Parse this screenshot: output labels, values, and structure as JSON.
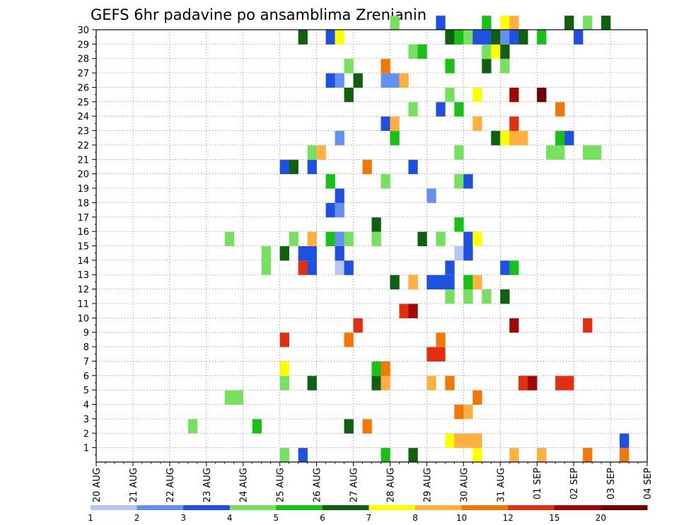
{
  "chart_data": {
    "type": "heatmap",
    "title": "GEFS 6hr padavine po ansamblima Zrenjanin",
    "x_tick_labels": [
      "20 AUG",
      "21 AUG",
      "22 AUG",
      "23 AUG",
      "24 AUG",
      "25 AUG",
      "26 AUG",
      "27 AUG",
      "28 AUG",
      "29 AUG",
      "30 AUG",
      "31 AUG",
      "01 SEP",
      "02 SEP",
      "03 SEP",
      "04 SEP"
    ],
    "y_tick_labels": [
      "1",
      "2",
      "3",
      "4",
      "5",
      "6",
      "7",
      "8",
      "9",
      "10",
      "11",
      "12",
      "13",
      "14",
      "15",
      "16",
      "17",
      "18",
      "19",
      "20",
      "21",
      "22",
      "23",
      "24",
      "25",
      "26",
      "27",
      "28",
      "29",
      "30"
    ],
    "x_unit": "6-hour steps from 20 AUG 00Z",
    "y_member_range": [
      0,
      30
    ],
    "grid": true,
    "legend": {
      "placement": "bottom",
      "labels": [
        "1",
        "2",
        "3",
        "4",
        "5",
        "6",
        "7",
        "8",
        "10",
        "12",
        "15",
        "20"
      ],
      "colors": [
        "#b4c8f8",
        "#6490f0",
        "#2050e0",
        "#78e060",
        "#18c018",
        "#106010",
        "#ffff00",
        "#ffb040",
        "#f07808",
        "#e03010",
        "#a00808",
        "#700000"
      ]
    },
    "cells": [
      [
        0,
        22,
        3
      ],
      [
        0,
        20,
        4
      ],
      [
        0,
        31,
        5
      ],
      [
        0,
        34,
        6
      ],
      [
        0,
        41,
        7
      ],
      [
        0,
        45,
        8
      ],
      [
        0,
        48,
        9
      ],
      [
        0,
        53,
        10
      ],
      [
        0,
        57,
        11
      ],
      [
        1,
        57,
        3
      ],
      [
        1,
        38,
        7
      ],
      [
        1,
        39,
        8
      ],
      [
        1,
        40,
        8
      ],
      [
        1,
        41,
        9
      ],
      [
        2,
        10,
        4
      ],
      [
        2,
        17,
        5
      ],
      [
        2,
        27,
        6
      ],
      [
        2,
        29,
        11
      ],
      [
        3,
        40,
        9
      ],
      [
        3,
        39,
        10
      ],
      [
        4,
        14,
        4
      ],
      [
        4,
        15,
        4
      ],
      [
        4,
        41,
        10
      ],
      [
        5,
        20,
        4
      ],
      [
        5,
        23,
        6
      ],
      [
        5,
        36,
        8
      ],
      [
        5,
        38,
        10
      ],
      [
        5,
        46,
        12
      ],
      [
        5,
        46,
        14
      ],
      [
        5,
        47,
        15
      ],
      [
        5,
        50,
        13
      ],
      [
        5,
        51,
        14
      ],
      [
        5,
        30,
        6
      ],
      [
        5,
        31,
        8
      ],
      [
        6,
        20,
        7
      ],
      [
        6,
        30,
        5
      ],
      [
        6,
        31,
        11
      ],
      [
        7,
        36,
        12
      ],
      [
        7,
        37,
        12
      ],
      [
        8,
        20,
        12
      ],
      [
        8,
        27,
        11
      ],
      [
        8,
        37,
        11
      ],
      [
        9,
        28,
        14
      ],
      [
        9,
        45,
        15
      ],
      [
        9,
        53,
        13
      ],
      [
        10,
        33,
        12
      ],
      [
        10,
        34,
        15
      ],
      [
        11,
        38,
        4
      ],
      [
        11,
        40,
        4
      ],
      [
        11,
        42,
        4
      ],
      [
        11,
        44,
        6
      ],
      [
        12,
        34,
        5
      ],
      [
        12,
        32,
        6
      ],
      [
        12,
        34,
        8
      ],
      [
        12,
        36,
        3
      ],
      [
        12,
        37,
        3
      ],
      [
        12,
        38,
        3
      ],
      [
        12,
        40,
        5
      ],
      [
        12,
        41,
        9
      ],
      [
        13,
        18,
        4
      ],
      [
        13,
        22,
        14
      ],
      [
        13,
        23,
        3
      ],
      [
        13,
        26,
        1
      ],
      [
        13,
        27,
        3
      ],
      [
        13,
        38,
        3
      ],
      [
        13,
        44,
        3
      ],
      [
        13,
        45,
        5
      ],
      [
        14,
        18,
        4
      ],
      [
        14,
        20,
        6
      ],
      [
        14,
        22,
        3
      ],
      [
        14,
        23,
        3
      ],
      [
        14,
        26,
        3
      ],
      [
        14,
        39,
        1
      ],
      [
        14,
        40,
        3
      ],
      [
        15,
        14,
        4
      ],
      [
        15,
        21,
        4
      ],
      [
        15,
        23,
        8
      ],
      [
        15,
        25,
        5
      ],
      [
        15,
        26,
        2
      ],
      [
        15,
        27,
        4
      ],
      [
        15,
        30,
        4
      ],
      [
        15,
        35,
        6
      ],
      [
        15,
        37,
        4
      ],
      [
        15,
        40,
        3
      ],
      [
        15,
        41,
        7
      ],
      [
        16,
        30,
        6
      ],
      [
        16,
        39,
        5
      ],
      [
        17,
        25,
        3
      ],
      [
        17,
        26,
        2
      ],
      [
        18,
        26,
        3
      ],
      [
        18,
        36,
        2
      ],
      [
        19,
        25,
        5
      ],
      [
        19,
        31,
        4
      ],
      [
        19,
        39,
        4
      ],
      [
        19,
        40,
        3
      ],
      [
        20,
        20,
        3
      ],
      [
        20,
        21,
        6
      ],
      [
        20,
        23,
        3
      ],
      [
        20,
        29,
        11
      ],
      [
        20,
        34,
        3
      ],
      [
        21,
        23,
        4
      ],
      [
        21,
        24,
        8
      ],
      [
        21,
        39,
        4
      ],
      [
        21,
        49,
        4
      ],
      [
        21,
        50,
        4
      ],
      [
        21,
        53,
        4
      ],
      [
        21,
        54,
        4
      ],
      [
        22,
        26,
        2
      ],
      [
        22,
        32,
        5
      ],
      [
        22,
        43,
        6
      ],
      [
        22,
        44,
        7
      ],
      [
        22,
        45,
        8
      ],
      [
        22,
        46,
        9
      ],
      [
        22,
        50,
        5
      ],
      [
        22,
        51,
        3
      ],
      [
        23,
        31,
        3
      ],
      [
        23,
        32,
        9
      ],
      [
        23,
        41,
        9
      ],
      [
        23,
        45,
        12
      ],
      [
        24,
        34,
        4
      ],
      [
        24,
        37,
        3
      ],
      [
        24,
        39,
        5
      ],
      [
        24,
        50,
        10
      ],
      [
        25,
        27,
        6
      ],
      [
        25,
        38,
        4
      ],
      [
        25,
        41,
        7
      ],
      [
        25,
        45,
        15
      ],
      [
        25,
        48,
        20
      ],
      [
        26,
        25,
        3
      ],
      [
        26,
        26,
        2
      ],
      [
        26,
        28,
        6
      ],
      [
        26,
        31,
        2
      ],
      [
        26,
        32,
        2
      ],
      [
        26,
        33,
        8
      ],
      [
        27,
        27,
        4
      ],
      [
        27,
        31,
        10
      ],
      [
        27,
        38,
        5
      ],
      [
        27,
        42,
        6
      ],
      [
        27,
        44,
        4
      ],
      [
        28,
        34,
        4
      ],
      [
        28,
        35,
        5
      ],
      [
        28,
        42,
        4
      ],
      [
        28,
        43,
        7
      ],
      [
        28,
        44,
        6
      ],
      [
        29,
        22,
        6
      ],
      [
        29,
        25,
        3
      ],
      [
        29,
        26,
        7
      ],
      [
        29,
        38,
        6
      ],
      [
        29,
        39,
        5
      ],
      [
        29,
        40,
        4
      ],
      [
        29,
        41,
        3
      ],
      [
        29,
        42,
        3
      ],
      [
        29,
        43,
        6
      ],
      [
        29,
        44,
        2
      ],
      [
        29,
        45,
        3
      ],
      [
        29,
        46,
        6
      ],
      [
        29,
        48,
        5
      ],
      [
        29,
        52,
        3
      ],
      [
        30,
        32,
        4
      ],
      [
        30,
        37,
        3
      ],
      [
        30,
        42,
        5
      ],
      [
        30,
        44,
        7
      ],
      [
        30,
        45,
        8
      ],
      [
        30,
        51,
        6
      ],
      [
        30,
        53,
        4
      ],
      [
        30,
        55,
        6
      ]
    ]
  }
}
